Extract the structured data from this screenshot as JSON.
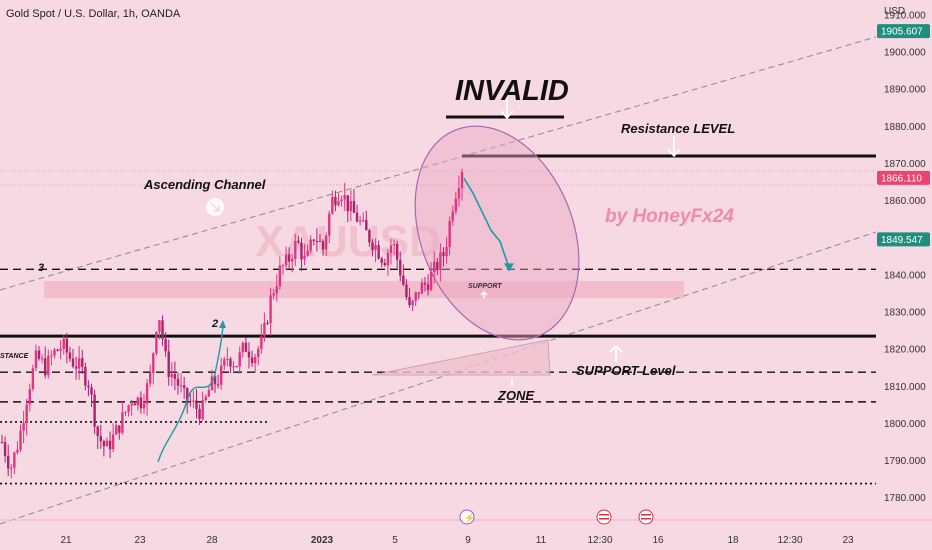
{
  "header": {
    "symbol_line": "Gold Spot / U.S. Dollar, 1h, OANDA"
  },
  "watermark": {
    "symbol": "XAUUSD",
    "author": "by HoneyFx24"
  },
  "price_axis": {
    "unit": "USD",
    "ticks": [
      "1910.000",
      "1900.000",
      "1890.000",
      "1880.000",
      "1870.000",
      "1860.000",
      "1850.000",
      "1840.000",
      "1830.000",
      "1820.000",
      "1810.000",
      "1800.000",
      "1790.000",
      "1780.000"
    ],
    "tick_values": [
      1910,
      1900,
      1890,
      1880,
      1870,
      1860,
      1850,
      1840,
      1830,
      1820,
      1810,
      1800,
      1790,
      1780
    ],
    "badges": [
      {
        "label": "1905.607",
        "value": 1905.607,
        "color": "#1e8f7e"
      },
      {
        "label": "1866.110",
        "value": 1866.11,
        "color": "#e9456f"
      },
      {
        "label": "1849.547",
        "value": 1849.547,
        "color": "#1e8f7e"
      }
    ]
  },
  "time_axis": {
    "labels": [
      "21",
      "23",
      "28",
      "2023",
      "5",
      "9",
      "11",
      "12:30",
      "16",
      "18",
      "12:30",
      "23"
    ]
  },
  "annotations": {
    "invalid": "INVALID",
    "resistance_level": "Resistance LEVEL",
    "ascending_channel": "Ascending Channel",
    "support_small": "SUPPORT",
    "support_level": "SUPPORT Level",
    "zone": "ZONE",
    "resistance_cut": "STANCE",
    "label_3": "3",
    "label_2": "2"
  },
  "levels": {
    "resistance": 1872,
    "support": 1823.5,
    "dashed_upper": 1841.5,
    "dashed_mid": 1813.8,
    "dashed_low": 1805.8,
    "dotted_upper": 1800.4,
    "dotted_low": 1783.8,
    "invalid_line": 1882.5
  },
  "colors": {
    "background": "#f6d9e2",
    "candle": "#b0206f",
    "candle_alt": "#e0367f",
    "accent_green": "#1e8f7e",
    "accent_red": "#e9456f",
    "arrow": "#1c9aa6"
  },
  "chart_data": {
    "type": "candlestick",
    "title": "Gold Spot / U.S. Dollar, 1h, OANDA",
    "ylabel": "USD",
    "ylim": [
      1774,
      1914
    ],
    "x_ticks": [
      "21",
      "23",
      "28",
      "2023",
      "5",
      "9",
      "11",
      "12:30",
      "16",
      "18",
      "12:30",
      "23"
    ],
    "close_path": [
      1795,
      1788,
      1796,
      1809,
      1818,
      1815,
      1819,
      1821,
      1817,
      1815,
      1811,
      1797,
      1793,
      1797,
      1802,
      1807,
      1806,
      1811,
      1831,
      1815,
      1812,
      1807,
      1805,
      1803,
      1810,
      1812,
      1818,
      1816,
      1821,
      1818,
      1822,
      1834,
      1841,
      1844,
      1849,
      1843,
      1851,
      1847,
      1860,
      1863,
      1858,
      1855,
      1851,
      1848,
      1844,
      1849,
      1840,
      1830,
      1836,
      1838,
      1842,
      1846,
      1860,
      1869
    ],
    "forecast_path": [
      1866,
      1862,
      1857,
      1852,
      1849,
      1842
    ],
    "series": [
      {
        "name": "Resistance LEVEL",
        "values": [
          1872
        ]
      },
      {
        "name": "SUPPORT Level",
        "values": [
          1823.5
        ]
      }
    ]
  }
}
